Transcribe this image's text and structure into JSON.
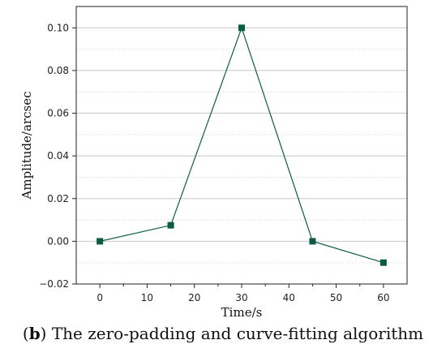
{
  "chart_data": {
    "type": "line",
    "title": "",
    "xlabel": "Time/s",
    "ylabel": "Amplitude/arcsec",
    "x": [
      0,
      15,
      30,
      45,
      60
    ],
    "series": [
      {
        "values": [
          0.0,
          0.0075,
          0.1,
          0.0,
          -0.01
        ],
        "color": "#0b5c46",
        "marker": "square"
      }
    ],
    "xlim": [
      -5,
      65
    ],
    "ylim": [
      -0.02,
      0.11
    ],
    "xticks": [
      0,
      10,
      20,
      30,
      40,
      50,
      60
    ],
    "yticks": [
      -0.02,
      0.0,
      0.02,
      0.04,
      0.06,
      0.08,
      0.1
    ],
    "ytick_labels": [
      "−0.02",
      "0.00",
      "0.02",
      "0.04",
      "0.06",
      "0.08",
      "0.10"
    ],
    "grid": "horizontal major (solid) and minor (dotted)",
    "legend": "none"
  },
  "caption": {
    "label": "b",
    "text": ") The zero-padding and curve-fitting algorithm"
  },
  "colors": {
    "series": "#0b5c46",
    "grid_major": "#c8c8c8",
    "grid_minor": "#d8d8d8",
    "axis": "#222222"
  }
}
